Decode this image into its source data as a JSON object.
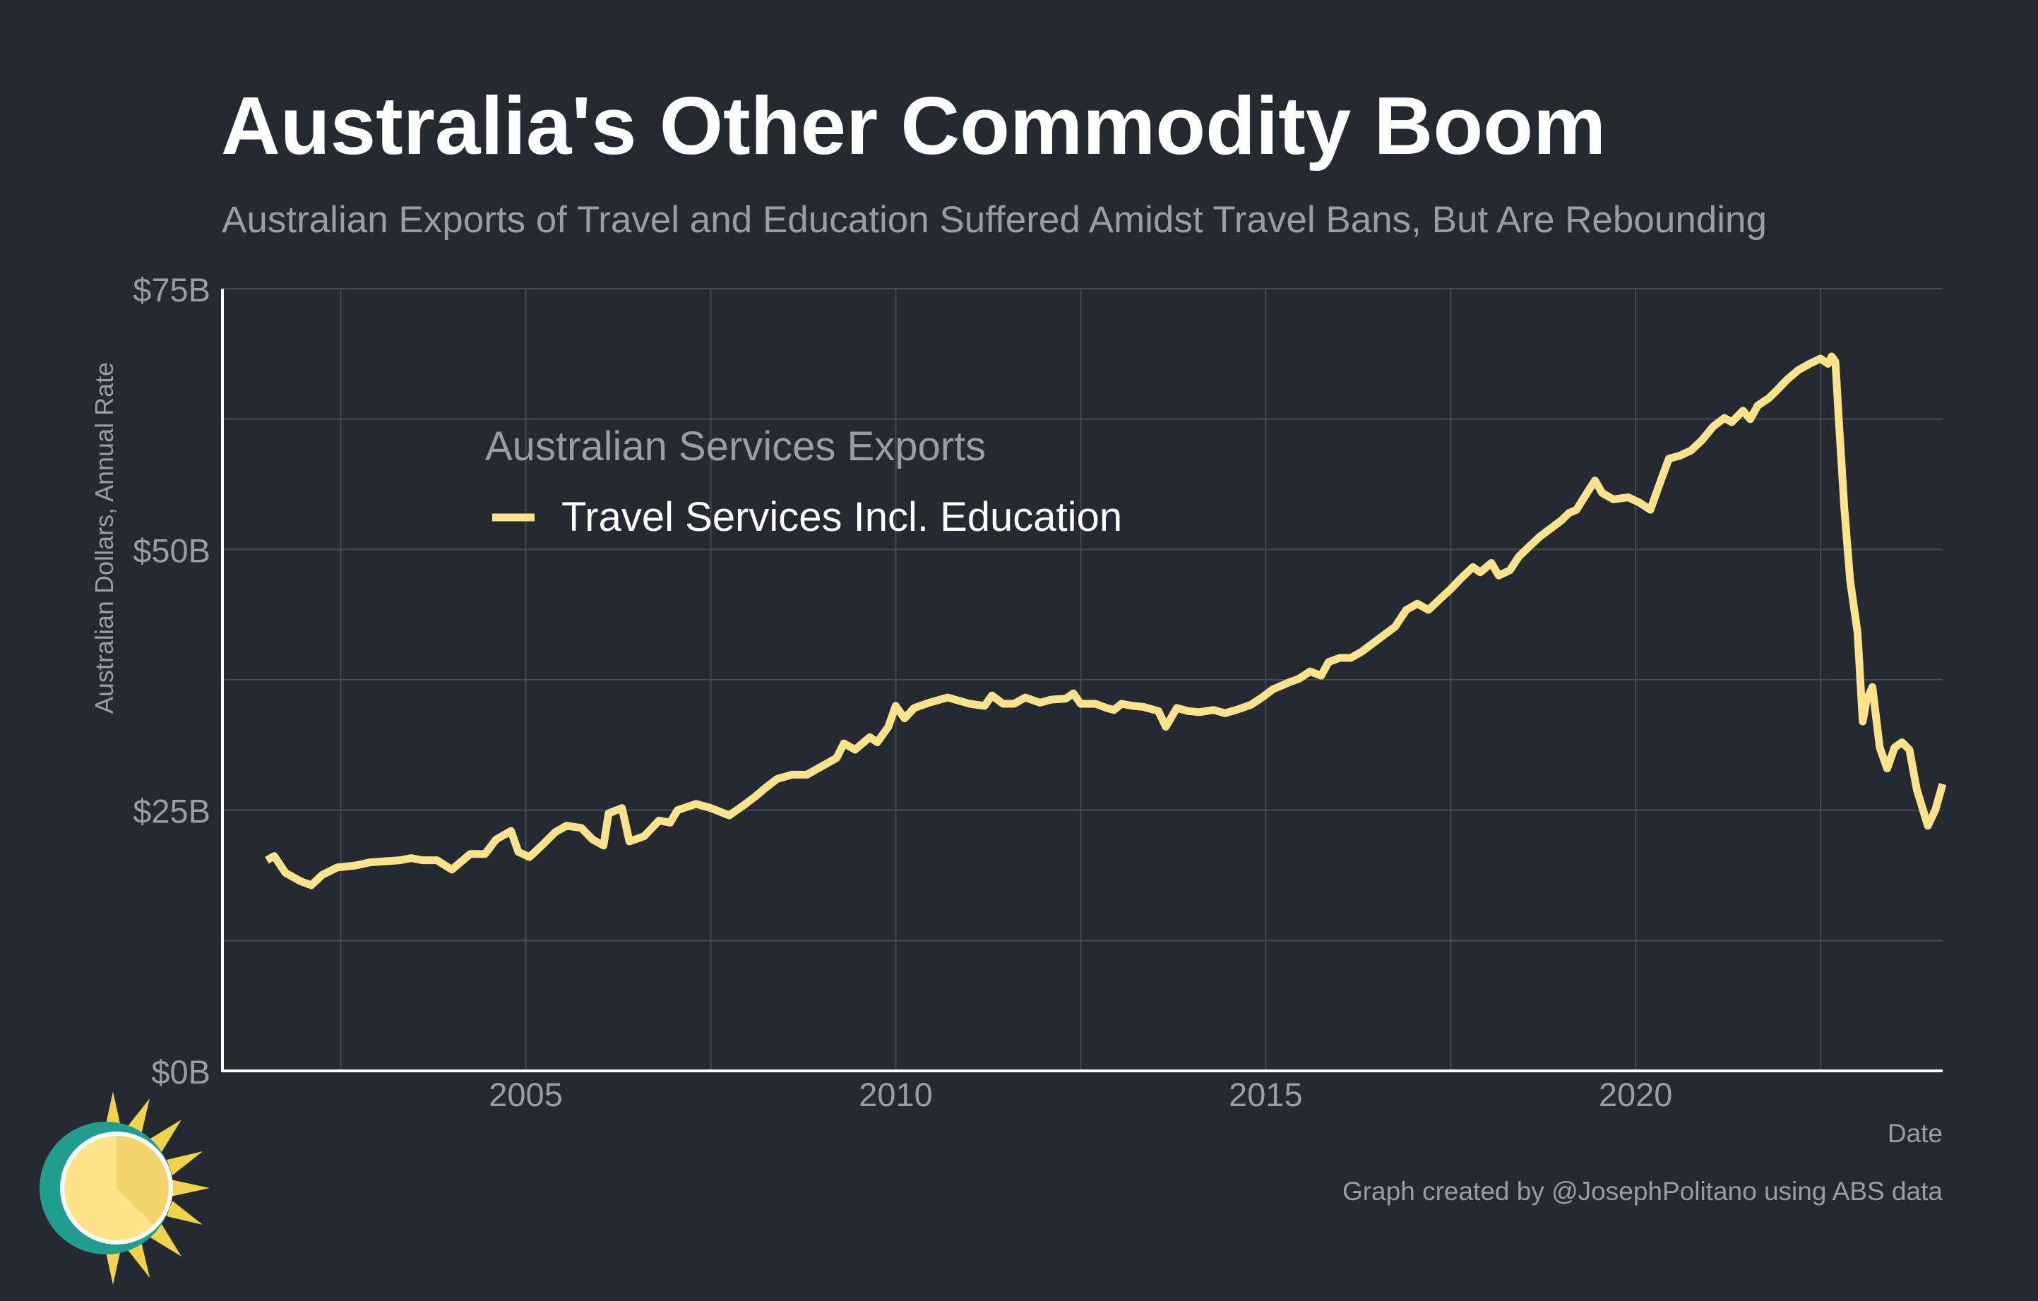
{
  "chart_data": {
    "type": "line",
    "title": "Australia's Other Commodity Boom",
    "subtitle": "Australian Exports of Travel and Education Suffered Amidst Travel Bans, But Are Rebounding",
    "xlabel": "Date",
    "ylabel": "Australian Dollars, Annual Rate",
    "xlim": [
      2000.9,
      2024.15
    ],
    "ylim": [
      0,
      75
    ],
    "x_ticks": [
      2005,
      2010,
      2015,
      2020
    ],
    "x_tick_labels": [
      "2005",
      "2010",
      "2015",
      "2020"
    ],
    "y_ticks": [
      0,
      25,
      50,
      75
    ],
    "y_tick_labels": [
      "$0B",
      "$25B",
      "$50B",
      "$75B"
    ],
    "grid": true,
    "legend": {
      "title": "Australian Services Exports",
      "position": "upper-left-inside"
    },
    "credit": "Graph created by @JosephPolitano using ABS data",
    "series": [
      {
        "name": "Travel Services Incl. Education",
        "color": "#fde38a",
        "points": [
          [
            2001.5,
            20.2
          ],
          [
            2001.6,
            20.6
          ],
          [
            2001.75,
            19.0
          ],
          [
            2001.95,
            18.2
          ],
          [
            2002.1,
            17.8
          ],
          [
            2002.25,
            18.8
          ],
          [
            2002.45,
            19.5
          ],
          [
            2002.7,
            19.7
          ],
          [
            2002.9,
            20.0
          ],
          [
            2003.1,
            20.1
          ],
          [
            2003.3,
            20.2
          ],
          [
            2003.45,
            20.4
          ],
          [
            2003.6,
            20.2
          ],
          [
            2003.8,
            20.2
          ],
          [
            2004.0,
            19.3
          ],
          [
            2004.25,
            20.8
          ],
          [
            2004.45,
            20.8
          ],
          [
            2004.6,
            22.2
          ],
          [
            2004.8,
            23.0
          ],
          [
            2004.9,
            21.0
          ],
          [
            2005.05,
            20.5
          ],
          [
            2005.2,
            21.5
          ],
          [
            2005.4,
            22.9
          ],
          [
            2005.55,
            23.5
          ],
          [
            2005.75,
            23.3
          ],
          [
            2005.9,
            22.2
          ],
          [
            2006.05,
            21.6
          ],
          [
            2006.12,
            24.7
          ],
          [
            2006.3,
            25.2
          ],
          [
            2006.4,
            22.0
          ],
          [
            2006.6,
            22.5
          ],
          [
            2006.8,
            24.0
          ],
          [
            2006.95,
            23.8
          ],
          [
            2007.05,
            25.0
          ],
          [
            2007.3,
            25.6
          ],
          [
            2007.5,
            25.2
          ],
          [
            2007.75,
            24.5
          ],
          [
            2007.95,
            25.5
          ],
          [
            2008.1,
            26.3
          ],
          [
            2008.25,
            27.2
          ],
          [
            2008.4,
            28.0
          ],
          [
            2008.6,
            28.4
          ],
          [
            2008.8,
            28.4
          ],
          [
            2009.0,
            29.2
          ],
          [
            2009.2,
            30.0
          ],
          [
            2009.3,
            31.4
          ],
          [
            2009.45,
            30.8
          ],
          [
            2009.65,
            32.0
          ],
          [
            2009.75,
            31.5
          ],
          [
            2009.9,
            33.0
          ],
          [
            2010.0,
            35.0
          ],
          [
            2010.12,
            33.8
          ],
          [
            2010.25,
            34.8
          ],
          [
            2010.45,
            35.3
          ],
          [
            2010.7,
            35.8
          ],
          [
            2010.85,
            35.5
          ],
          [
            2011.0,
            35.2
          ],
          [
            2011.2,
            35.0
          ],
          [
            2011.3,
            36.0
          ],
          [
            2011.45,
            35.2
          ],
          [
            2011.6,
            35.2
          ],
          [
            2011.75,
            35.8
          ],
          [
            2011.95,
            35.3
          ],
          [
            2012.1,
            35.6
          ],
          [
            2012.3,
            35.7
          ],
          [
            2012.4,
            36.2
          ],
          [
            2012.5,
            35.2
          ],
          [
            2012.7,
            35.2
          ],
          [
            2012.85,
            34.8
          ],
          [
            2012.95,
            34.6
          ],
          [
            2013.05,
            35.2
          ],
          [
            2013.2,
            35.0
          ],
          [
            2013.35,
            34.9
          ],
          [
            2013.55,
            34.5
          ],
          [
            2013.65,
            33.0
          ],
          [
            2013.8,
            34.8
          ],
          [
            2013.95,
            34.5
          ],
          [
            2014.1,
            34.4
          ],
          [
            2014.3,
            34.6
          ],
          [
            2014.45,
            34.3
          ],
          [
            2014.6,
            34.6
          ],
          [
            2014.8,
            35.1
          ],
          [
            2014.95,
            35.8
          ],
          [
            2015.1,
            36.6
          ],
          [
            2015.3,
            37.2
          ],
          [
            2015.45,
            37.6
          ],
          [
            2015.6,
            38.3
          ],
          [
            2015.75,
            37.9
          ],
          [
            2015.85,
            39.2
          ],
          [
            2016.0,
            39.6
          ],
          [
            2016.15,
            39.6
          ],
          [
            2016.3,
            40.2
          ],
          [
            2016.45,
            41.0
          ],
          [
            2016.6,
            41.8
          ],
          [
            2016.75,
            42.6
          ],
          [
            2016.9,
            44.2
          ],
          [
            2017.05,
            44.8
          ],
          [
            2017.2,
            44.2
          ],
          [
            2017.35,
            45.2
          ],
          [
            2017.5,
            46.2
          ],
          [
            2017.65,
            47.3
          ],
          [
            2017.8,
            48.3
          ],
          [
            2017.9,
            47.8
          ],
          [
            2018.05,
            48.7
          ],
          [
            2018.15,
            47.5
          ],
          [
            2018.3,
            48.0
          ],
          [
            2018.42,
            49.3
          ],
          [
            2018.55,
            50.2
          ],
          [
            2018.7,
            51.2
          ],
          [
            2018.85,
            52.0
          ],
          [
            2019.0,
            52.8
          ],
          [
            2019.1,
            53.5
          ],
          [
            2019.2,
            53.8
          ],
          [
            2019.35,
            55.5
          ],
          [
            2019.45,
            56.6
          ],
          [
            2019.55,
            55.4
          ],
          [
            2019.7,
            54.8
          ],
          [
            2019.9,
            55.0
          ],
          [
            2020.05,
            54.5
          ],
          [
            2020.2,
            53.8
          ],
          [
            2020.3,
            55.8
          ],
          [
            2020.45,
            58.7
          ],
          [
            2020.6,
            59.0
          ],
          [
            2020.75,
            59.5
          ],
          [
            2020.9,
            60.5
          ],
          [
            2021.05,
            61.8
          ],
          [
            2021.2,
            62.6
          ],
          [
            2021.3,
            62.2
          ],
          [
            2021.45,
            63.3
          ],
          [
            2021.55,
            62.5
          ],
          [
            2021.65,
            63.8
          ],
          [
            2021.8,
            64.5
          ],
          [
            2021.9,
            65.2
          ],
          [
            2022.05,
            66.3
          ],
          [
            2022.2,
            67.2
          ],
          [
            2022.35,
            67.8
          ],
          [
            2022.5,
            68.3
          ],
          [
            2022.6,
            67.8
          ],
          [
            2022.65,
            68.5
          ],
          [
            2022.7,
            68.0
          ],
          [
            2022.75,
            62.0
          ],
          [
            2022.82,
            54.0
          ],
          [
            2022.9,
            47.0
          ],
          [
            2023.0,
            42.0
          ],
          [
            2023.07,
            33.5
          ],
          [
            2023.12,
            35.5
          ],
          [
            2023.2,
            36.8
          ],
          [
            2023.3,
            31.0
          ],
          [
            2023.4,
            29.0
          ],
          [
            2023.5,
            31.0
          ],
          [
            2023.6,
            31.5
          ],
          [
            2023.7,
            30.8
          ],
          [
            2023.8,
            27.0
          ],
          [
            2023.95,
            23.5
          ],
          [
            2024.05,
            25.0
          ],
          [
            2024.15,
            27.5
          ]
        ]
      }
    ]
  }
}
